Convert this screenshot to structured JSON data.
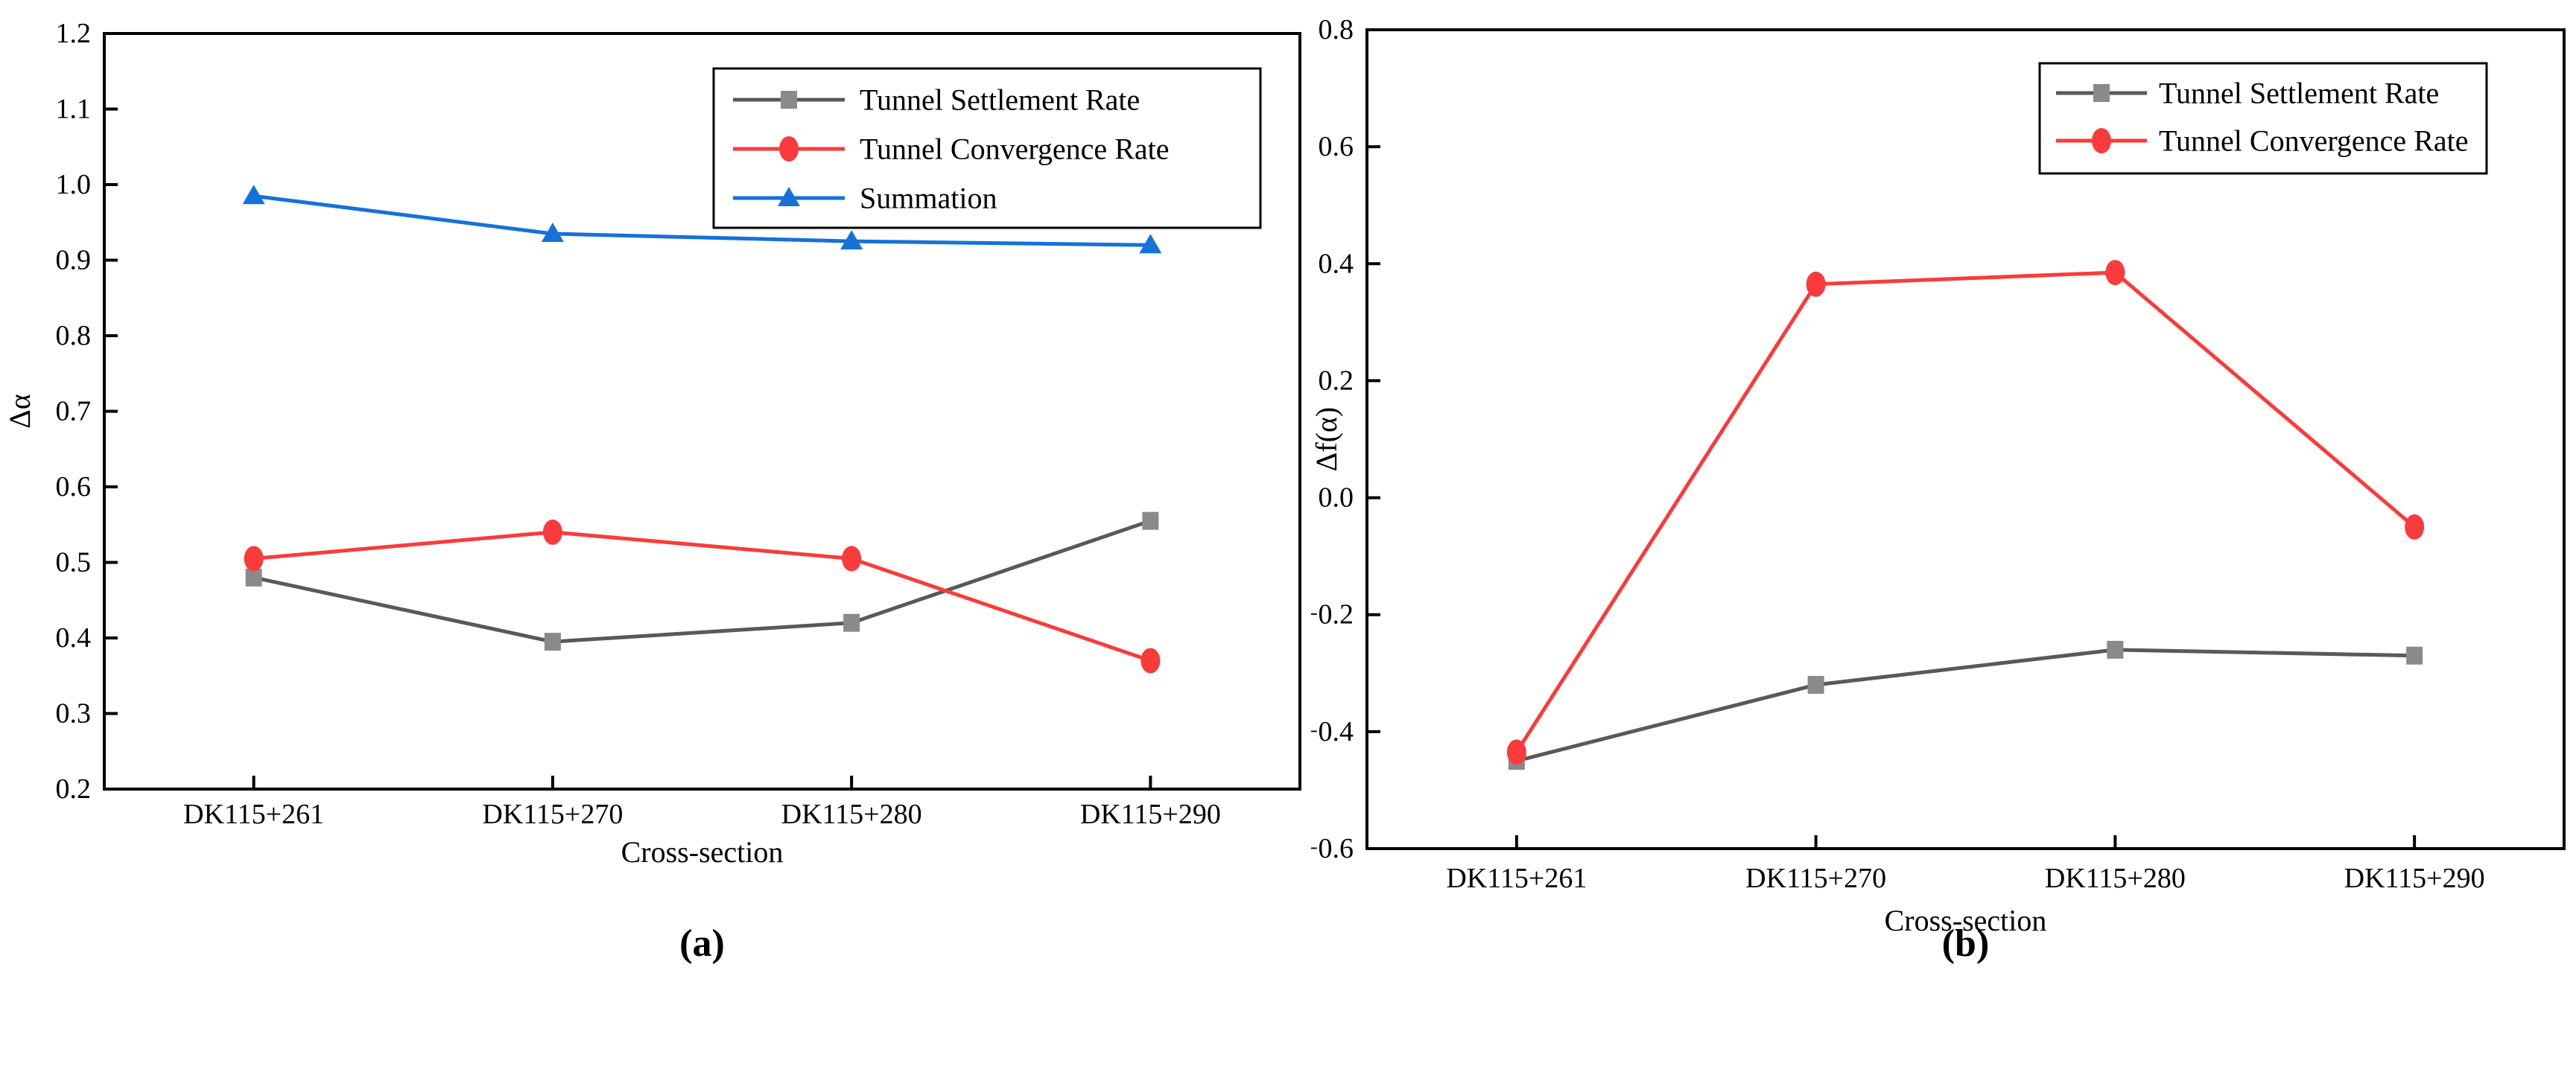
{
  "figure_caption_a": "(a)",
  "figure_caption_b": "(b)",
  "chart_data": [
    {
      "type": "line",
      "caption": "(a)",
      "title": "",
      "xlabel": "Cross-section",
      "ylabel": "Δα",
      "categories": [
        "DK115+261",
        "DK115+270",
        "DK115+280",
        "DK115+290"
      ],
      "ylim": [
        0.2,
        1.2
      ],
      "ytick_step": 0.1,
      "yticks": [
        "1.2",
        "1.1",
        "1.0",
        "0.9",
        "0.8",
        "0.7",
        "0.6",
        "0.5",
        "0.4",
        "0.3",
        "0.2"
      ],
      "grid": false,
      "legend_position": "top-right-inside",
      "series": [
        {
          "name": "Tunnel Settlement Rate",
          "marker": "square",
          "line_color": "#595959",
          "marker_color": "#8a8a8a",
          "values": [
            0.48,
            0.395,
            0.42,
            0.555
          ]
        },
        {
          "name": "Tunnel Convergence Rate",
          "marker": "circle",
          "line_color": "#fa3b3b",
          "marker_color": "#fa3b3b",
          "values": [
            0.505,
            0.54,
            0.505,
            0.37
          ]
        },
        {
          "name": "Summation",
          "marker": "triangle",
          "line_color": "#1472d8",
          "marker_color": "#1472d8",
          "values": [
            0.985,
            0.935,
            0.925,
            0.92
          ]
        }
      ]
    },
    {
      "type": "line",
      "caption": "(b)",
      "title": "",
      "xlabel": "Cross-section",
      "ylabel": "Δf(α)",
      "categories": [
        "DK115+261",
        "DK115+270",
        "DK115+280",
        "DK115+290"
      ],
      "ylim": [
        -0.6,
        0.8
      ],
      "ytick_step": 0.2,
      "yticks": [
        "0.8",
        "0.6",
        "0.4",
        "0.2",
        "0.0",
        "−0.2",
        "−0.4",
        "−0.6"
      ],
      "grid": false,
      "legend_position": "top-right-inside",
      "series": [
        {
          "name": "Tunnel Settlement Rate",
          "marker": "square",
          "line_color": "#595959",
          "marker_color": "#8a8a8a",
          "values": [
            -0.45,
            -0.32,
            -0.26,
            -0.27
          ]
        },
        {
          "name": "Tunnel Convergence Rate",
          "marker": "circle",
          "line_color": "#fa3b3b",
          "marker_color": "#fa3b3b",
          "values": [
            -0.435,
            0.365,
            0.385,
            -0.05
          ]
        }
      ]
    }
  ]
}
